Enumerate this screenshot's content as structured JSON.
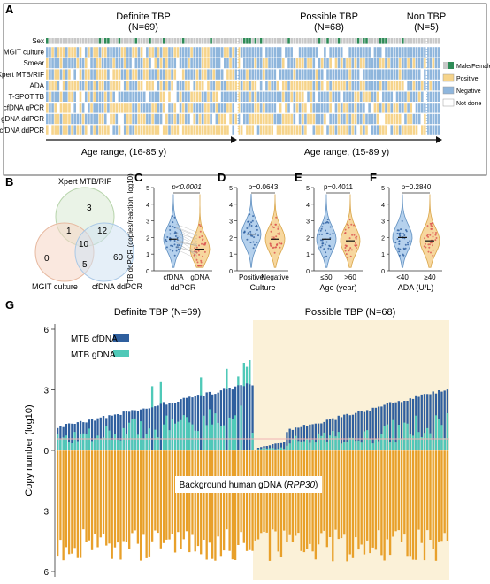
{
  "panel_labels": {
    "a": "A",
    "b": "B",
    "c": "C",
    "d": "D",
    "e": "E",
    "f": "F",
    "g": "G"
  },
  "colors": {
    "positive": "#f6d48b",
    "negative": "#8fb6dc",
    "not_done": "#ffffff",
    "male": "#2e8b57",
    "female": "#c8c8c8",
    "grid": "#ffffff",
    "cfdna": "#2f5f9e",
    "gdna": "#4fc9b8",
    "human": "#e8a02a",
    "possible_bg": "#fbf1d8",
    "threshold": "#f2b3b3"
  },
  "heatmap": {
    "groups": [
      {
        "title": "Definite TBP",
        "n_label": "(N=69)",
        "n": 69
      },
      {
        "title": "Possible TBP",
        "n_label": "(N=68)",
        "n": 68
      },
      {
        "title": "Non TBP",
        "n_label": "(N=5)",
        "n": 5
      }
    ],
    "rows": [
      "Sex",
      "MGIT culture",
      "Smear",
      "Xpert MTB/RIF",
      "ADA",
      "T-SPOT.TB",
      "cfDNA qPCR",
      "gDNA ddPCR",
      "cfDNA ddPCR"
    ],
    "legend": [
      {
        "label": "Male/Female",
        "key": "sex"
      },
      {
        "label": "Positive",
        "key": "positive"
      },
      {
        "label": "Negative",
        "key": "negative"
      },
      {
        "label": "Not done",
        "key": "not_done"
      }
    ],
    "age_ranges": [
      "Age range, (16-85 y)",
      "Age range, (15-89 y)"
    ]
  },
  "venn": {
    "sets": [
      "Xpert MTB/RIF",
      "MGIT culture",
      "cfDNA ddPCR"
    ],
    "regions": {
      "xpert_only": "3",
      "mgit_only": "0",
      "cfdna_only": "60",
      "xpert_mgit": "1",
      "xpert_cfdna": "12",
      "mgit_cfdna": "5",
      "all": "10"
    }
  },
  "chart_data": [
    {
      "type": "violin",
      "panel": "C",
      "categories": [
        "cfDNA",
        "gDNA"
      ],
      "xlabel": "ddPCR",
      "ylabel": "TB ddPCR (copies/reaction, log10)",
      "ylim": [
        0,
        5
      ],
      "yticks": [
        0,
        1,
        2,
        3,
        4,
        5
      ],
      "p_value": "p<0.0001",
      "medians": [
        1.9,
        1.3
      ],
      "paired": true
    },
    {
      "type": "violin",
      "panel": "D",
      "categories": [
        "Positive",
        "Negative"
      ],
      "xlabel": "Culture",
      "ylim": [
        0,
        5
      ],
      "yticks": [
        0,
        1,
        2,
        3,
        4,
        5
      ],
      "p_value": "p=0.0643",
      "medians": [
        2.2,
        1.9
      ]
    },
    {
      "type": "violin",
      "panel": "E",
      "categories": [
        "≤60",
        ">60"
      ],
      "xlabel": "Age (year)",
      "ylim": [
        0,
        5
      ],
      "yticks": [
        0,
        1,
        2,
        3,
        4,
        5
      ],
      "p_value": "p=0.4011",
      "medians": [
        1.9,
        1.8
      ]
    },
    {
      "type": "violin",
      "panel": "F",
      "categories": [
        "<40",
        "≥40"
      ],
      "xlabel": "ADA (U/L)",
      "ylim": [
        0,
        5
      ],
      "yticks": [
        0,
        1,
        2,
        3,
        4,
        5
      ],
      "p_value": "p=0.2840",
      "medians": [
        2.0,
        1.8
      ]
    },
    {
      "type": "bar",
      "panel": "G",
      "ylabel": "Copy number (log10)",
      "ylim": [
        -6,
        6
      ],
      "yticks": [
        "6",
        "3",
        "0",
        "3",
        "6"
      ],
      "groups": [
        {
          "name": "Definite TBP (N=69)",
          "n": 69
        },
        {
          "name": "Possible TBP (N=68)",
          "n": 68
        }
      ],
      "series": [
        {
          "name": "MTB cfDNA",
          "key": "cfdna"
        },
        {
          "name": "MTB gDNA",
          "key": "gdna"
        }
      ],
      "annotation": "Background human gDNA (RPP30)",
      "threshold": 0.6
    }
  ]
}
